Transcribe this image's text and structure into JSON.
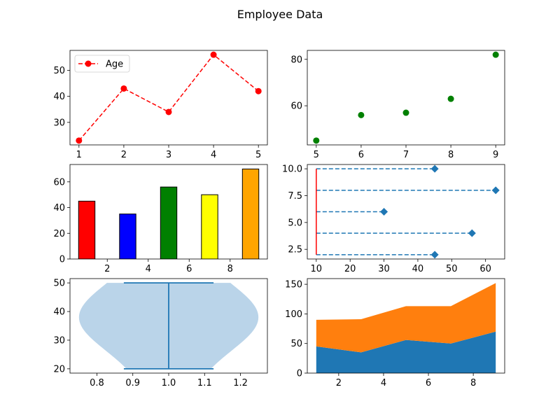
{
  "figure": {
    "title": "Employee Data"
  },
  "colors": {
    "tab_blue": "#1f77b4",
    "tab_orange": "#ff7f0e",
    "violin_fill": "#bad4e9",
    "axis": "#000000"
  },
  "chart_data": [
    {
      "type": "line",
      "panel": "top-left",
      "x": [
        1,
        2,
        3,
        4,
        5
      ],
      "series": [
        {
          "name": "Age",
          "values": [
            23,
            43,
            34,
            56,
            42
          ],
          "color": "#ff0000",
          "style": "dashed",
          "marker": "circle"
        }
      ],
      "xlim": [
        0.8,
        5.2
      ],
      "ylim": [
        21.35,
        57.65
      ],
      "xticks": [
        1,
        2,
        3,
        4,
        5
      ],
      "yticks": [
        30,
        40,
        50
      ],
      "legend": {
        "placement": "top-left",
        "entries": [
          "Age"
        ]
      }
    },
    {
      "type": "scatter",
      "panel": "top-right",
      "x": [
        5,
        6,
        7,
        8,
        9
      ],
      "series": [
        {
          "values": [
            45,
            56,
            57,
            63,
            82
          ],
          "color": "#008000"
        }
      ],
      "xlim": [
        4.8,
        9.2
      ],
      "ylim": [
        43.15,
        83.85
      ],
      "xticks": [
        5,
        6,
        7,
        8,
        9
      ],
      "yticks": [
        60,
        80
      ]
    },
    {
      "type": "bar",
      "panel": "middle-left",
      "x": [
        1,
        3,
        5,
        7,
        9
      ],
      "values": [
        45,
        35,
        56,
        50,
        70
      ],
      "bar_width": 0.8,
      "bar_colors": [
        "#ff0000",
        "#0000ff",
        "#008000",
        "#ffff00",
        "#ffa500"
      ],
      "edge_color": "#000000",
      "xlim": [
        0.18,
        9.82
      ],
      "ylim": [
        0,
        73.5
      ],
      "xticks": [
        2,
        4,
        6,
        8
      ],
      "yticks": [
        0,
        20,
        40,
        60
      ]
    },
    {
      "type": "scatter",
      "panel": "middle-right",
      "subtype": "dashed-hlines-with-diamonds",
      "points": [
        {
          "x": 45,
          "y": 2
        },
        {
          "x": 56,
          "y": 4
        },
        {
          "x": 30,
          "y": 6
        },
        {
          "x": 63,
          "y": 8
        },
        {
          "x": 45,
          "y": 10
        }
      ],
      "line_start_x": 10,
      "vline": {
        "x": 10,
        "ymin": 2,
        "ymax": 10,
        "color": "#ff0000"
      },
      "xlim": [
        7.35,
        65.65
      ],
      "ylim": [
        1.6,
        10.4
      ],
      "xticks": [
        10,
        20,
        30,
        40,
        50,
        60
      ],
      "yticks": [
        2.5,
        5.0,
        7.5,
        10.0
      ],
      "ytick_labels": [
        "2.5",
        "5.0",
        "7.5",
        "10.0"
      ]
    },
    {
      "type": "violin",
      "panel": "bottom-left",
      "position": 1,
      "width": 0.5,
      "min": 20,
      "max": 50,
      "xlim": [
        0.725,
        1.275
      ],
      "ylim": [
        18.5,
        51.5
      ],
      "xticks": [
        0.8,
        0.9,
        1.0,
        1.1,
        1.2
      ],
      "xtick_labels": [
        "0.8",
        "0.9",
        "1.0",
        "1.1",
        "1.2"
      ],
      "yticks": [
        20,
        30,
        40,
        50
      ]
    },
    {
      "type": "area",
      "panel": "bottom-right",
      "x": [
        1,
        3,
        5,
        7,
        9
      ],
      "series": [
        {
          "values": [
            45,
            35,
            56,
            50,
            70
          ],
          "color": "#1f77b4"
        },
        {
          "values": [
            45,
            56,
            57,
            63,
            82
          ],
          "color": "#ff7f0e"
        }
      ],
      "stacked": true,
      "xlim": [
        0.6,
        9.4
      ],
      "ylim": [
        0,
        159.6
      ],
      "xticks": [
        2,
        4,
        6,
        8
      ],
      "yticks": [
        0,
        50,
        100,
        150
      ]
    }
  ]
}
